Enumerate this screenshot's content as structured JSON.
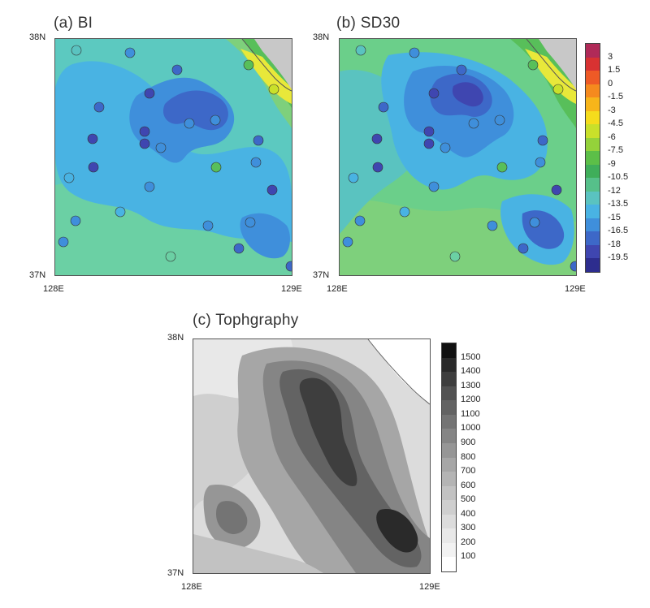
{
  "panels": [
    {
      "id": "a",
      "title": "(a) BI"
    },
    {
      "id": "b",
      "title": "(b) SD30"
    },
    {
      "id": "c",
      "title": "(c) Tophgraphy"
    }
  ],
  "axes": {
    "lat_top": "38N",
    "lat_bottom": "37N",
    "lon_left": "128E",
    "lon_right": "129E"
  },
  "colorbar_temp": {
    "labels": [
      "3",
      "1.5",
      "0",
      "-1.5",
      "-3",
      "-4.5",
      "-6",
      "-7.5",
      "-9",
      "-10.5",
      "-12",
      "-13.5",
      "-15",
      "-16.5",
      "-18",
      "-19.5"
    ],
    "colors": [
      "#b02a58",
      "#d83232",
      "#ee5a26",
      "#f58a1e",
      "#f7b51a",
      "#f5dc1c",
      "#c9e02a",
      "#94d23a",
      "#5cbf48",
      "#3fae5a",
      "#56c08a",
      "#5ac3c0",
      "#49b3e3",
      "#3f8fdb",
      "#3d68c8",
      "#3f46b0",
      "#2d2d8e"
    ]
  },
  "colorbar_topo": {
    "labels": [
      "1500",
      "1400",
      "1300",
      "1200",
      "1100",
      "1000",
      "900",
      "800",
      "700",
      "600",
      "500",
      "400",
      "300",
      "200",
      "100"
    ],
    "colors": [
      "#111111",
      "#2a2a2a",
      "#3e3e3e",
      "#525252",
      "#636363",
      "#747474",
      "#858585",
      "#969696",
      "#a6a6a6",
      "#b4b4b4",
      "#c2c2c2",
      "#cfcfcf",
      "#dcdcdc",
      "#e8e8e8",
      "#f2f2f2",
      "#ffffff"
    ]
  }
}
